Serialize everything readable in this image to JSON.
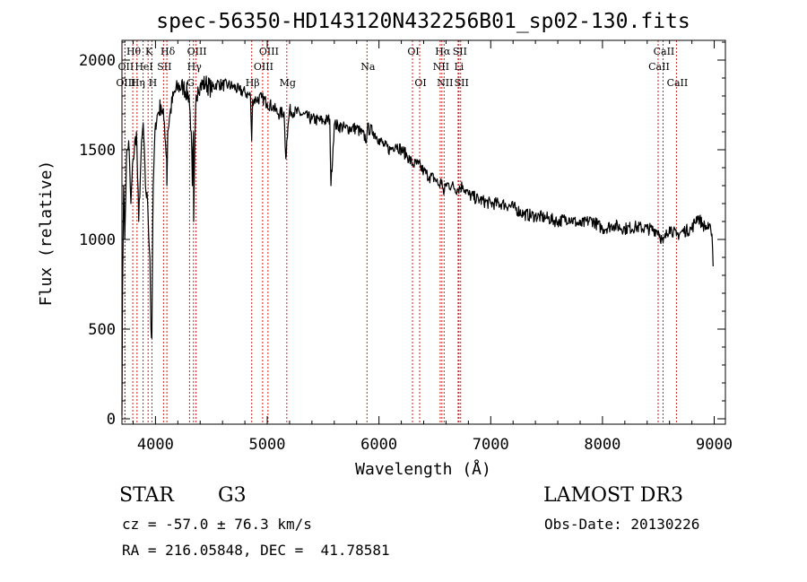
{
  "chart_data": {
    "type": "line",
    "title": "spec-56350-HD143120N432256B01_sp02-130.fits",
    "xlabel": "Wavelength (Å)",
    "ylabel": "Flux (relative)",
    "xlim": [
      3700,
      9100
    ],
    "ylim": [
      -30,
      2110
    ],
    "xticks": [
      4000,
      5000,
      6000,
      7000,
      8000,
      9000
    ],
    "yticks": [
      0,
      500,
      1000,
      1500,
      2000
    ],
    "grid": false,
    "series": [
      {
        "name": "flux",
        "x": [
          3700,
          3705,
          3715,
          3725,
          3740,
          3760,
          3780,
          3800,
          3830,
          3850,
          3870,
          3890,
          3910,
          3930,
          3950,
          3960,
          3968,
          3972,
          3980,
          4000,
          4020,
          4050,
          4080,
          4100,
          4102,
          4110,
          4130,
          4160,
          4200,
          4250,
          4300,
          4320,
          4330,
          4340,
          4342,
          4360,
          4380,
          4400,
          4450,
          4500,
          4550,
          4600,
          4650,
          4700,
          4750,
          4800,
          4850,
          4861,
          4870,
          4900,
          4950,
          5000,
          5050,
          5100,
          5150,
          5167,
          5175,
          5200,
          5300,
          5400,
          5500,
          5560,
          5570,
          5600,
          5700,
          5800,
          5890,
          5896,
          5950,
          6000,
          6050,
          6100,
          6150,
          6200,
          6250,
          6300,
          6350,
          6400,
          6450,
          6500,
          6540,
          6563,
          6580,
          6600,
          6650,
          6700,
          6750,
          6800,
          6900,
          7000,
          7100,
          7200,
          7300,
          7400,
          7500,
          7600,
          7700,
          7800,
          7900,
          8000,
          8100,
          8200,
          8300,
          8400,
          8498,
          8542,
          8600,
          8662,
          8700,
          8800,
          8850,
          8900,
          8950,
          8970,
          8975,
          8980,
          8985,
          8990
        ],
        "values": [
          20,
          700,
          1300,
          1000,
          1450,
          1550,
          1200,
          1450,
          1600,
          1100,
          1450,
          1650,
          1300,
          1200,
          900,
          500,
          450,
          800,
          1300,
          1650,
          1700,
          1750,
          1650,
          1450,
          1300,
          1600,
          1700,
          1800,
          1850,
          1850,
          1800,
          1600,
          1300,
          1600,
          1100,
          1750,
          1850,
          1860,
          1870,
          1840,
          1870,
          1860,
          1860,
          1850,
          1830,
          1820,
          1800,
          1550,
          1780,
          1780,
          1790,
          1760,
          1740,
          1700,
          1710,
          1450,
          1550,
          1720,
          1700,
          1670,
          1660,
          1670,
          1300,
          1640,
          1620,
          1620,
          1560,
          1620,
          1600,
          1560,
          1520,
          1500,
          1530,
          1500,
          1470,
          1420,
          1420,
          1380,
          1350,
          1340,
          1300,
          1330,
          1250,
          1310,
          1300,
          1280,
          1300,
          1250,
          1220,
          1200,
          1200,
          1180,
          1140,
          1130,
          1120,
          1100,
          1120,
          1080,
          1110,
          1060,
          1080,
          1060,
          1070,
          1060,
          1050,
          980,
          1070,
          1020,
          1040,
          1060,
          1130,
          1080,
          1060,
          1050,
          1020,
          1030,
          950,
          850
        ]
      }
    ],
    "spectral_lines": [
      {
        "name": "Hθ",
        "wavelength": 3797,
        "row": 1
      },
      {
        "name": "OII",
        "wavelength": 3727,
        "row": 2
      },
      {
        "name": "OIII",
        "wavelength": 3727,
        "row": 3
      },
      {
        "name": "Hη",
        "wavelength": 3835,
        "row": 3
      },
      {
        "name": "K",
        "wavelength": 3934,
        "row": 1
      },
      {
        "name": "H",
        "wavelength": 3968,
        "row": 3
      },
      {
        "name": "HeI",
        "wavelength": 3889,
        "row": 2
      },
      {
        "name": "SII",
        "wavelength": 4072,
        "row": 2
      },
      {
        "name": "Hδ",
        "wavelength": 4102,
        "row": 1
      },
      {
        "name": "OIII",
        "wavelength": 4363,
        "row": 1
      },
      {
        "name": "Hγ",
        "wavelength": 4340,
        "row": 2
      },
      {
        "name": "G",
        "wavelength": 4305,
        "row": 3
      },
      {
        "name": "Hβ",
        "wavelength": 4861,
        "row": 3
      },
      {
        "name": "OIII",
        "wavelength": 5007,
        "row": 1
      },
      {
        "name": "OIII",
        "wavelength": 4959,
        "row": 2
      },
      {
        "name": "Mg",
        "wavelength": 5175,
        "row": 3
      },
      {
        "name": "Na",
        "wavelength": 5893,
        "row": 2
      },
      {
        "name": "OI",
        "wavelength": 6300,
        "row": 1
      },
      {
        "name": "OI",
        "wavelength": 6364,
        "row": 3
      },
      {
        "name": "Hα",
        "wavelength": 6563,
        "row": 1
      },
      {
        "name": "NII",
        "wavelength": 6548,
        "row": 2
      },
      {
        "name": "NII",
        "wavelength": 6583,
        "row": 3
      },
      {
        "name": "SII",
        "wavelength": 6716,
        "row": 1
      },
      {
        "name": "Li",
        "wavelength": 6708,
        "row": 2
      },
      {
        "name": "SII",
        "wavelength": 6731,
        "row": 3
      },
      {
        "name": "CaII",
        "wavelength": 8542,
        "row": 1
      },
      {
        "name": "CaII",
        "wavelength": 8498,
        "row": 2
      },
      {
        "name": "CaII",
        "wavelength": 8662,
        "row": 3
      }
    ]
  },
  "info": {
    "class_label": "STAR",
    "subclass": "G3",
    "survey": "LAMOST DR3",
    "cz": "cz = -57.0 ± 76.3 km/s",
    "obs_date": "Obs-Date: 20130226",
    "coords": "RA = 216.05848, DEC =  41.78581"
  },
  "colors": {
    "line": "#000000",
    "marker": "#cc2222",
    "axis": "#000000"
  }
}
